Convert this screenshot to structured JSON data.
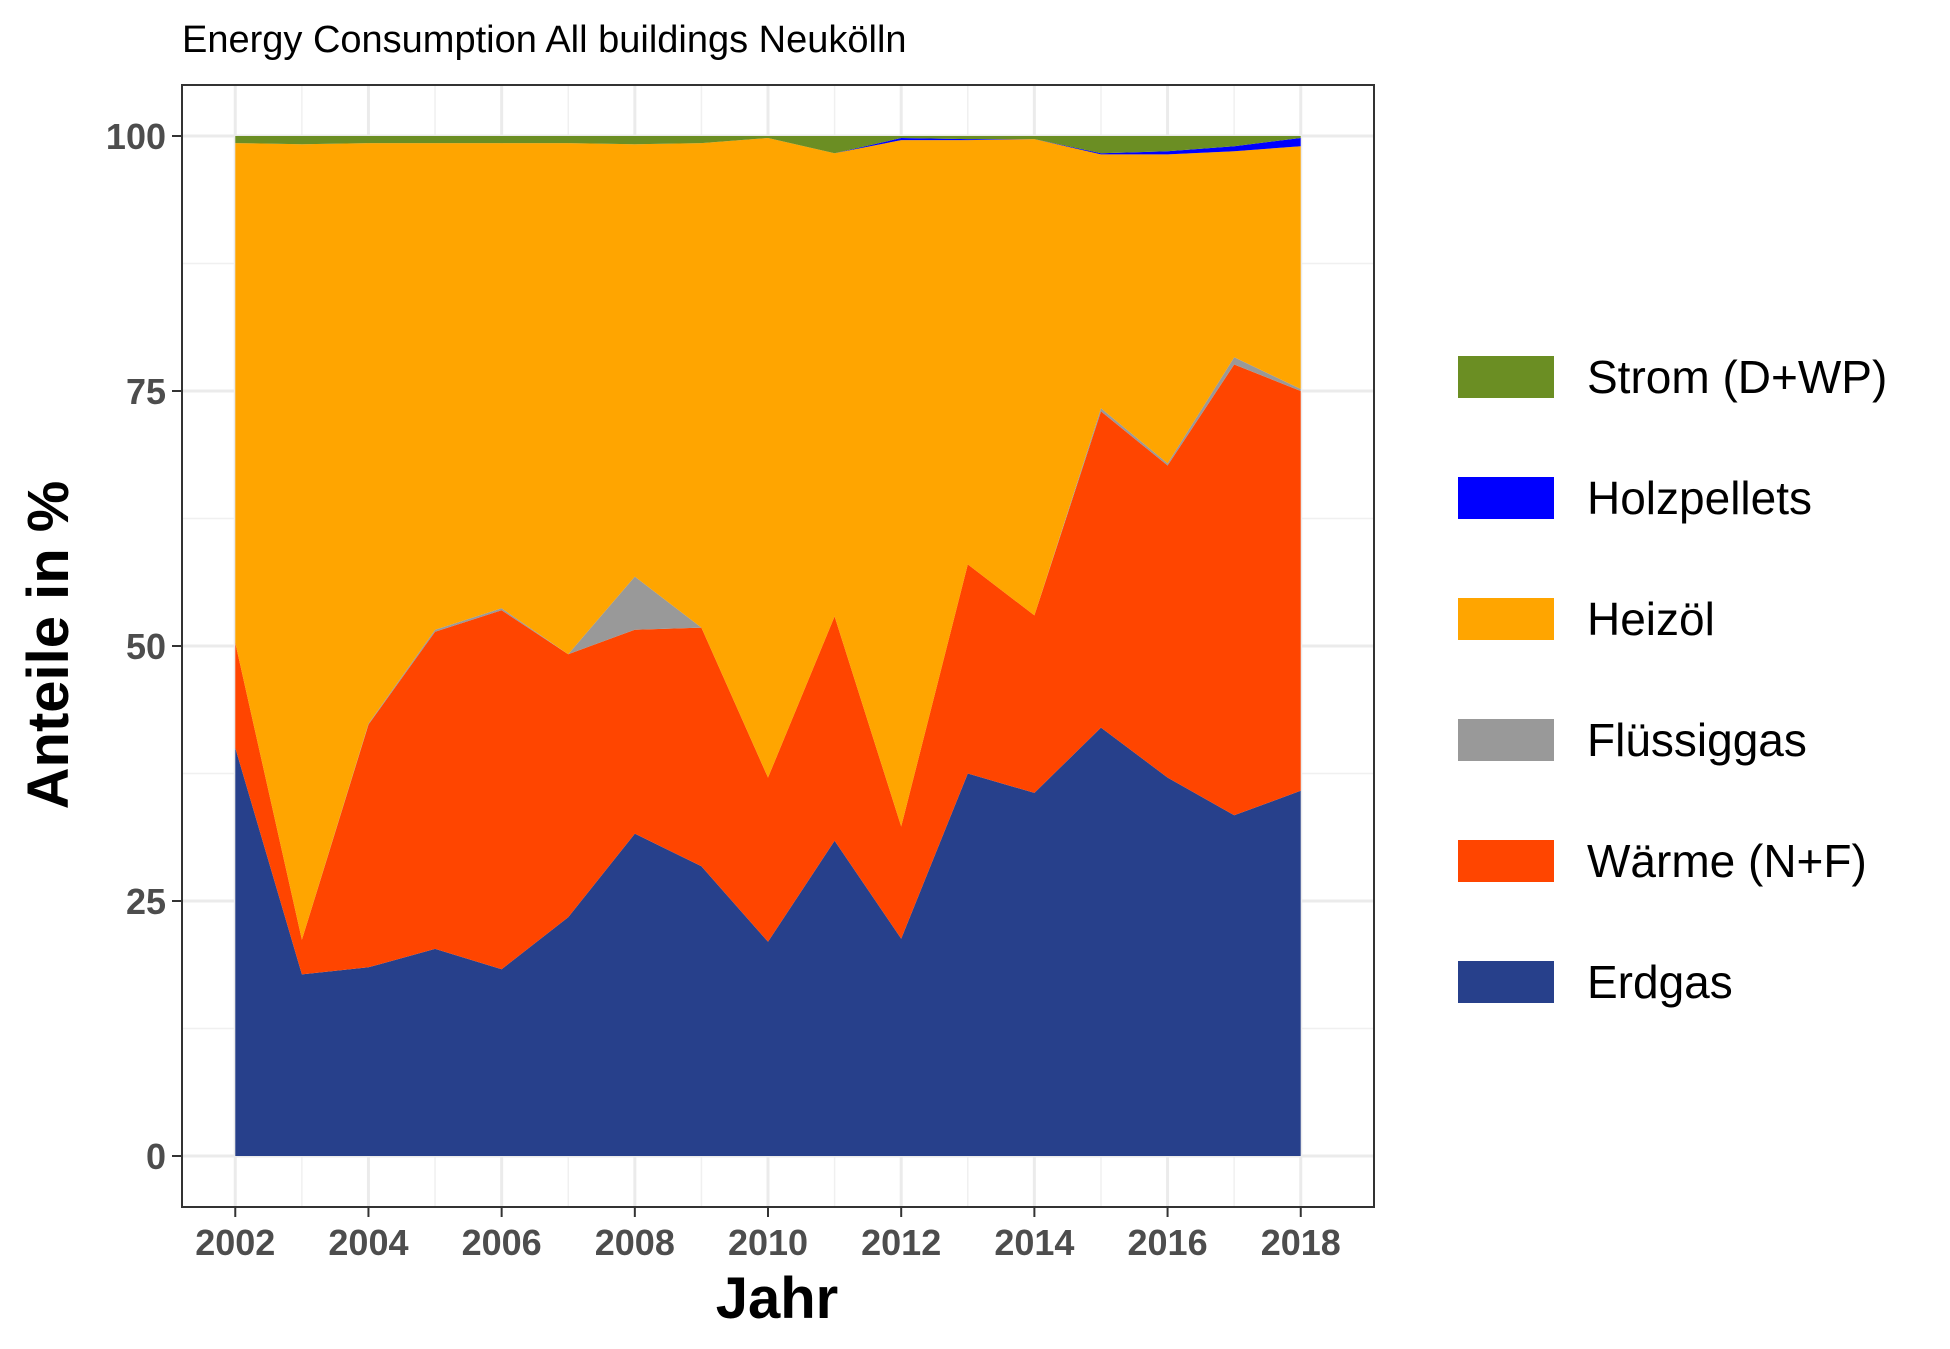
{
  "chart_data": {
    "type": "area",
    "title": "Energy Consumption All buildings Neukölln",
    "xlabel": "Jahr",
    "ylabel": "Anteile in %",
    "xlim": [
      2001.2,
      2019.1
    ],
    "ylim": [
      -5,
      105
    ],
    "x_ticks": [
      2002,
      2004,
      2006,
      2008,
      2010,
      2012,
      2014,
      2016,
      2018
    ],
    "y_ticks": [
      0,
      25,
      50,
      75,
      100
    ],
    "grid": true,
    "stacked": true,
    "legend_position": "right",
    "x": [
      2002,
      2003,
      2004,
      2005,
      2006,
      2007,
      2008,
      2009,
      2010,
      2011,
      2012,
      2013,
      2014,
      2015,
      2016,
      2017,
      2018
    ],
    "series": [
      {
        "name": "Erdgas",
        "color": "#27408B",
        "values": [
          40.0,
          17.8,
          18.5,
          20.3,
          18.3,
          23.4,
          31.6,
          28.4,
          21.0,
          30.9,
          21.3,
          37.5,
          35.6,
          42.0,
          37.1,
          33.4,
          35.8
        ]
      },
      {
        "name": "Wärme (N+F)",
        "color": "#FF4500",
        "values": [
          10.3,
          3.4,
          23.8,
          31.1,
          35.2,
          25.8,
          20.0,
          23.4,
          16.1,
          22.0,
          11.0,
          20.5,
          17.4,
          31.0,
          30.6,
          44.2,
          39.2
        ]
      },
      {
        "name": "Flüssiggas",
        "color": "#999999",
        "values": [
          0.0,
          0.0,
          0.1,
          0.2,
          0.2,
          0.0,
          5.2,
          0.0,
          0.0,
          0.0,
          0.0,
          0.0,
          0.0,
          0.3,
          0.2,
          0.7,
          0.2
        ]
      },
      {
        "name": "Heizöl",
        "color": "#FFA500",
        "values": [
          49.0,
          78.0,
          56.9,
          47.7,
          45.6,
          50.1,
          42.4,
          47.5,
          62.7,
          45.4,
          67.3,
          41.6,
          46.7,
          24.9,
          30.3,
          20.2,
          23.8
        ]
      },
      {
        "name": "Holzpellets",
        "color": "#0000FF",
        "values": [
          0.0,
          0.0,
          0.0,
          0.0,
          0.0,
          0.0,
          0.0,
          0.0,
          0.0,
          0.0,
          0.2,
          0.1,
          0.0,
          0.1,
          0.3,
          0.5,
          0.8
        ]
      },
      {
        "name": "Strom (D+WP)",
        "color": "#6B8E23",
        "values": [
          0.7,
          0.8,
          0.7,
          0.7,
          0.7,
          0.7,
          0.8,
          0.7,
          0.2,
          1.7,
          0.2,
          0.3,
          0.3,
          1.7,
          1.5,
          1.0,
          0.2
        ]
      }
    ],
    "legend_order": [
      "Strom (D+WP)",
      "Holzpellets",
      "Heizöl",
      "Flüssiggas",
      "Wärme (N+F)",
      "Erdgas"
    ]
  }
}
